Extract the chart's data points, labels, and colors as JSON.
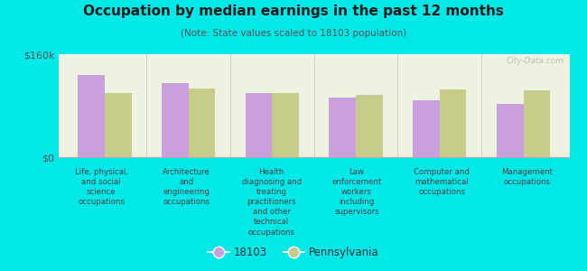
{
  "title": "Occupation by median earnings in the past 12 months",
  "subtitle": "(Note: State values scaled to 18103 population)",
  "background_color": "#00e8e8",
  "plot_bg_color": "#eef2e0",
  "categories": [
    "Life, physical,\nand social\nscience\noccupations",
    "Architecture\nand\nengineering\noccupations",
    "Health\ndiagnosing and\ntreating\npractitioners\nand other\ntechnical\noccupations",
    "Law\nenforcement\nworkers\nincluding\nsupervisors",
    "Computer and\nmathematical\noccupations",
    "Management\noccupations"
  ],
  "values_18103": [
    128000,
    115000,
    100000,
    93000,
    88000,
    83000
  ],
  "values_pa": [
    100000,
    107000,
    99000,
    97000,
    105000,
    104000
  ],
  "color_18103": "#c9a0dc",
  "color_pa": "#c8cc8a",
  "ylim": [
    0,
    160000
  ],
  "ytick_labels": [
    "$0",
    "$160k"
  ],
  "legend_18103": "18103",
  "legend_pa": "Pennsylvania",
  "bar_width": 0.32,
  "watermark": "City-Data.com"
}
